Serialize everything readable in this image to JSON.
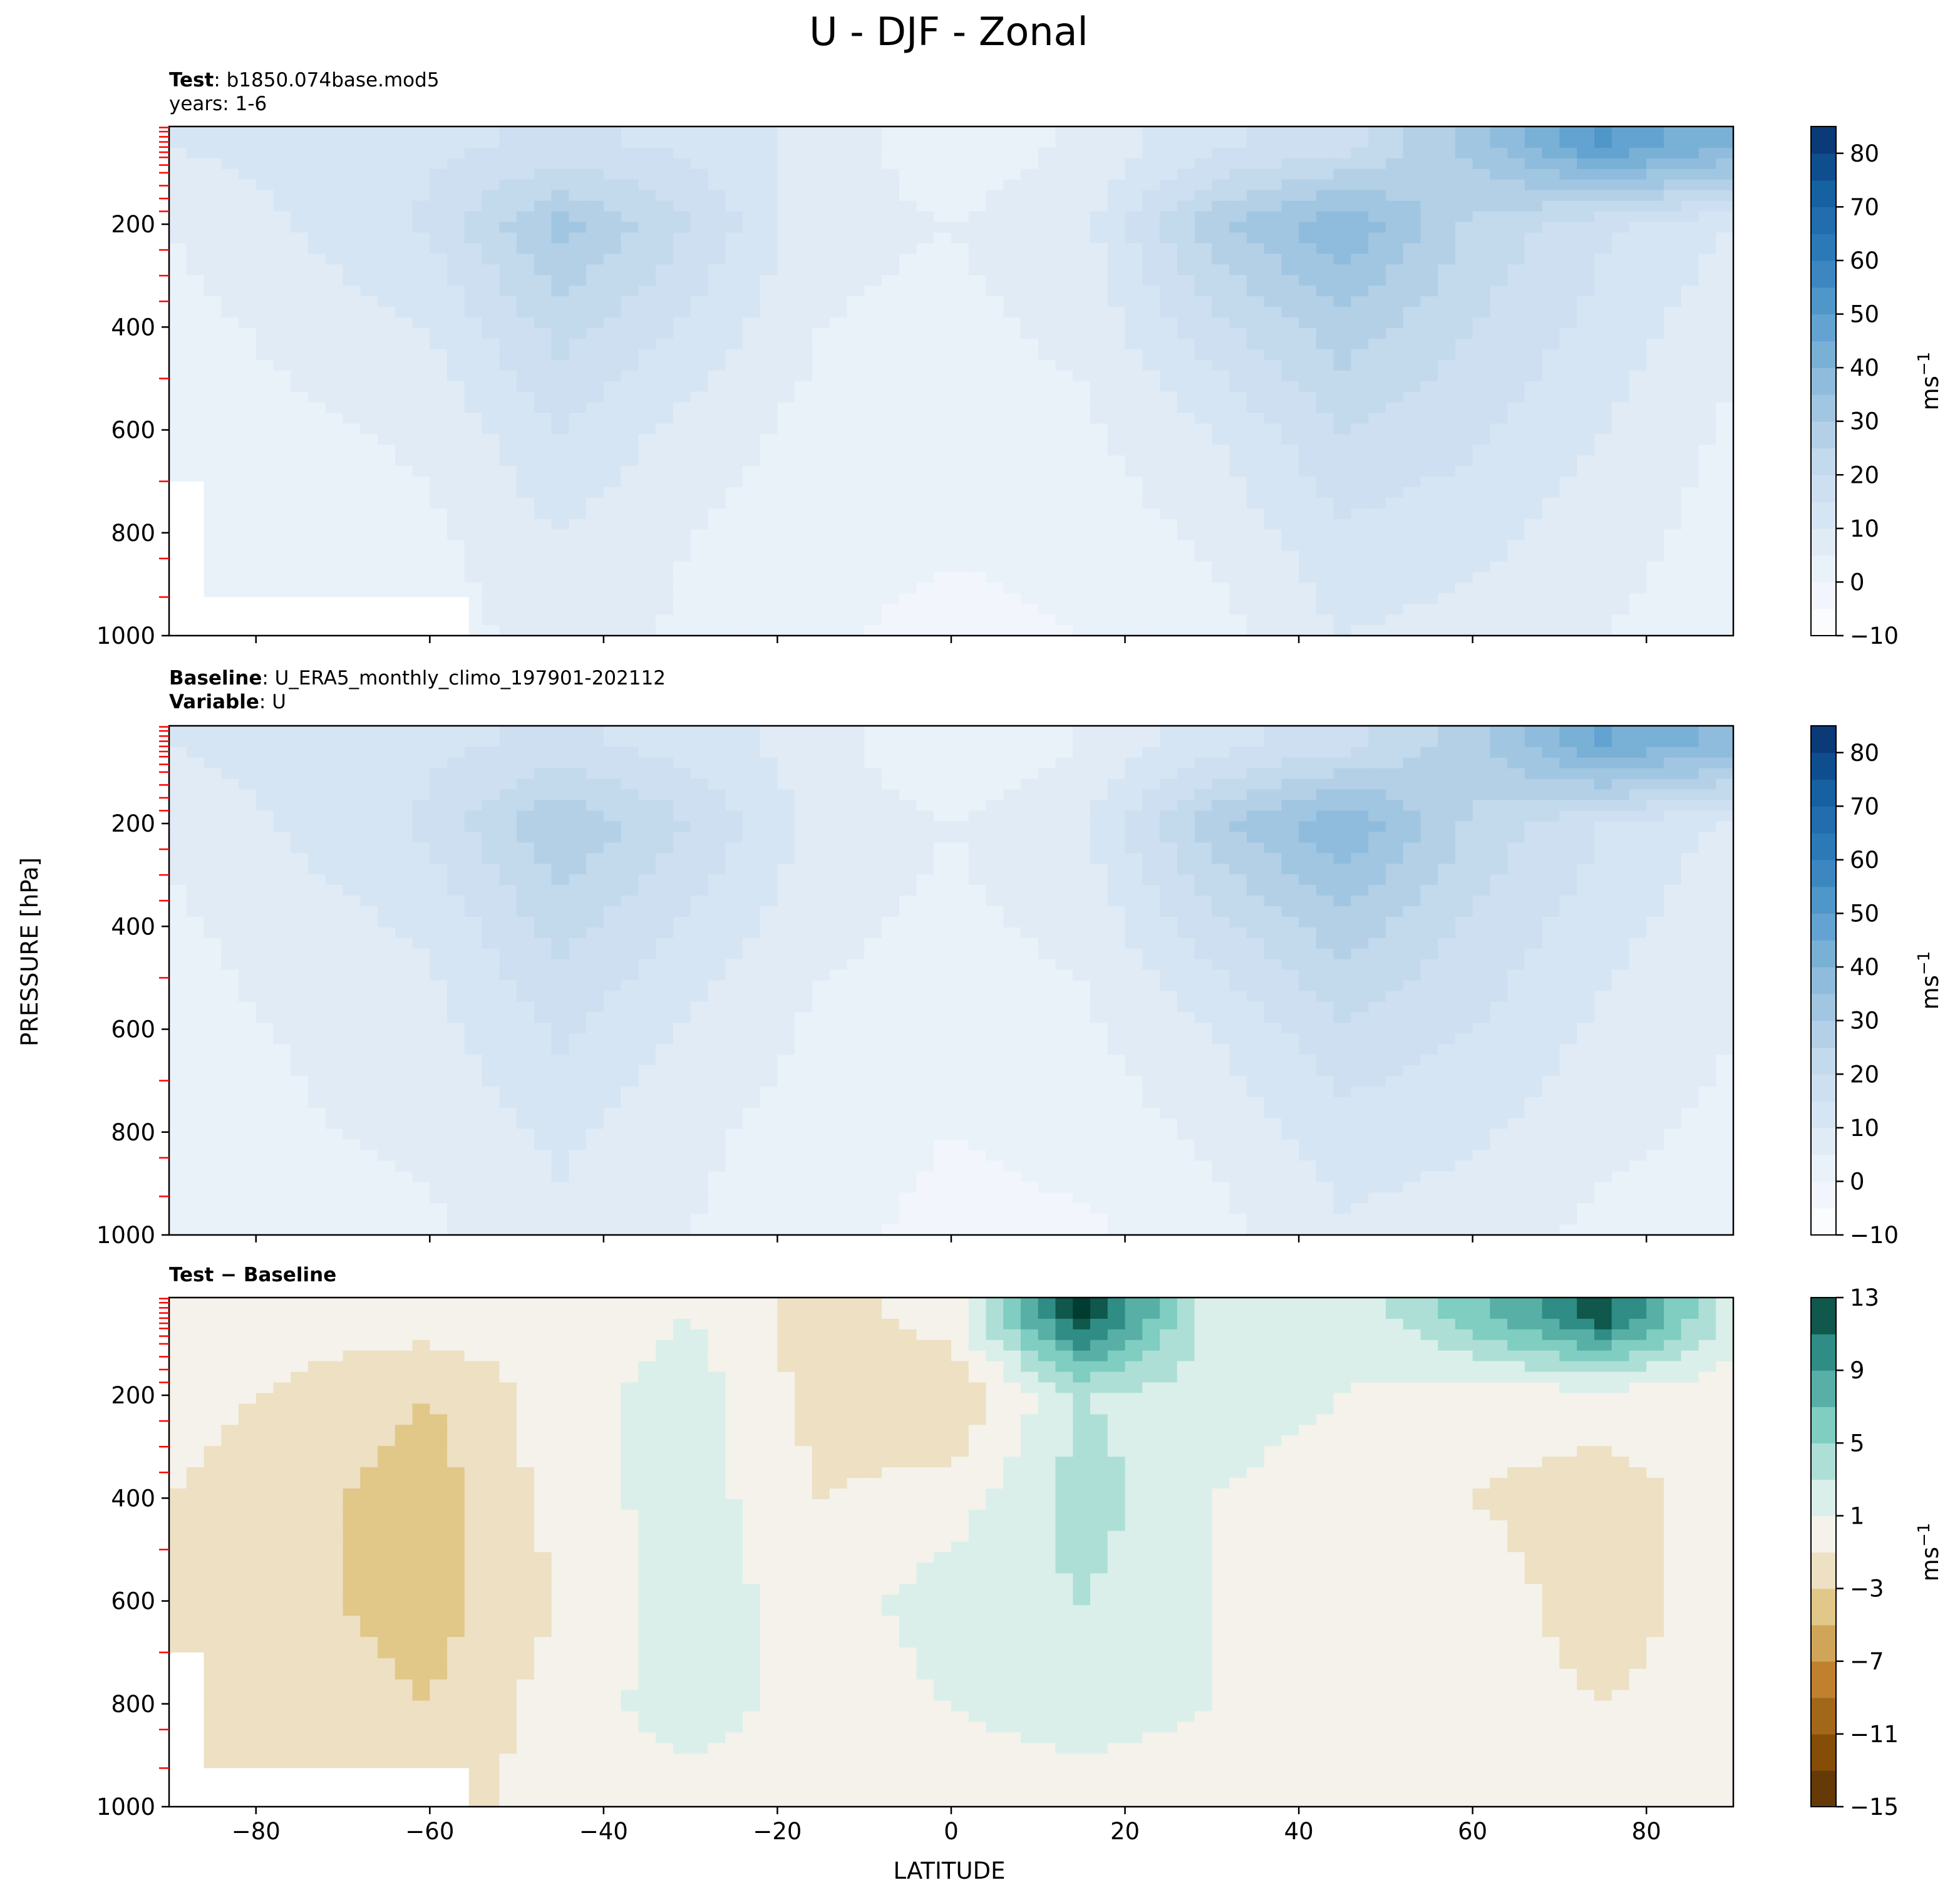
{
  "figure": {
    "title": "U - DJF - Zonal",
    "ylabel": "PRESSURE [hPa]",
    "xlabel": "LATITUDE"
  },
  "panels": [
    {
      "id": "test",
      "header": [
        {
          "bold": "Test",
          "text": ": b1850.074base.mod5"
        },
        {
          "bold": "",
          "text": "years: 1-6"
        }
      ],
      "colorbar": {
        "unit": "ms",
        "unit_sup": "−1",
        "ticks": [
          "80",
          "70",
          "60",
          "50",
          "40",
          "30",
          "20",
          "10",
          "0",
          "−10"
        ]
      }
    },
    {
      "id": "baseline",
      "header": [
        {
          "bold": "Baseline",
          "text": ": U_ERA5_monthly_climo_197901-202112"
        },
        {
          "bold": "Variable",
          "text": ": U"
        }
      ],
      "colorbar": {
        "unit": "ms",
        "unit_sup": "−1",
        "ticks": [
          "80",
          "70",
          "60",
          "50",
          "40",
          "30",
          "20",
          "10",
          "0",
          "−10"
        ]
      }
    },
    {
      "id": "diff",
      "header": [
        {
          "bold": "Test − Baseline",
          "text": ""
        }
      ],
      "colorbar": {
        "unit": "ms",
        "unit_sup": "−1",
        "ticks": [
          "13",
          "9",
          "5",
          "1",
          "−3",
          "−7",
          "−11",
          "−15"
        ]
      }
    }
  ],
  "chart_data": [
    {
      "type": "heatmap",
      "name": "Test",
      "x": [
        -90,
        -60,
        -45,
        -30,
        -15,
        0,
        15,
        30,
        45,
        60,
        75,
        90
      ],
      "y": [
        1000,
        800,
        600,
        400,
        200,
        50
      ],
      "z_units": "m/s",
      "z": [
        [
          -1,
          2,
          8,
          4,
          1,
          -2,
          0,
          3,
          10,
          8,
          5,
          2
        ],
        [
          1,
          4,
          10,
          5,
          2,
          1,
          2,
          6,
          14,
          12,
          7,
          3
        ],
        [
          2,
          6,
          15,
          8,
          3,
          3,
          4,
          10,
          20,
          16,
          10,
          4
        ],
        [
          3,
          10,
          22,
          14,
          5,
          4,
          6,
          18,
          28,
          20,
          13,
          6
        ],
        [
          5,
          16,
          32,
          20,
          6,
          5,
          8,
          28,
          40,
          24,
          16,
          10
        ],
        [
          10,
          14,
          16,
          14,
          8,
          2,
          6,
          14,
          18,
          32,
          50,
          40
        ]
      ],
      "ylim": [
        1000,
        10
      ],
      "xlim": [
        -90,
        90
      ],
      "xticks": [
        -80,
        -60,
        -40,
        -20,
        0,
        20,
        40,
        60,
        80
      ],
      "yticks": [
        200,
        400,
        600,
        800,
        1000
      ],
      "colorbar_range": [
        -10,
        85
      ]
    },
    {
      "type": "heatmap",
      "name": "Baseline",
      "x": [
        -90,
        -60,
        -45,
        -30,
        -15,
        0,
        15,
        30,
        45,
        60,
        75,
        90
      ],
      "y": [
        1000,
        800,
        600,
        400,
        200,
        50
      ],
      "z_units": "m/s",
      "z": [
        [
          2,
          4,
          9,
          5,
          2,
          -2,
          -1,
          3,
          9,
          7,
          4,
          3
        ],
        [
          3,
          6,
          11,
          6,
          3,
          0,
          2,
          6,
          13,
          11,
          6,
          4
        ],
        [
          3,
          8,
          16,
          9,
          4,
          3,
          4,
          10,
          19,
          15,
          9,
          5
        ],
        [
          4,
          11,
          22,
          14,
          6,
          4,
          6,
          18,
          28,
          19,
          12,
          6
        ],
        [
          6,
          16,
          30,
          20,
          8,
          5,
          9,
          28,
          40,
          24,
          15,
          9
        ],
        [
          10,
          14,
          16,
          13,
          7,
          0,
          5,
          13,
          18,
          28,
          45,
          38
        ]
      ],
      "ylim": [
        1000,
        10
      ],
      "xlim": [
        -90,
        90
      ],
      "xticks": [
        -80,
        -60,
        -40,
        -20,
        0,
        20,
        40,
        60,
        80
      ],
      "yticks": [
        200,
        400,
        600,
        800,
        1000
      ],
      "colorbar_range": [
        -10,
        85
      ]
    },
    {
      "type": "heatmap",
      "name": "Test − Baseline",
      "x": [
        -90,
        -60,
        -45,
        -30,
        -15,
        0,
        15,
        30,
        45,
        60,
        75,
        90
      ],
      "y": [
        1000,
        800,
        600,
        400,
        200,
        50
      ],
      "z_units": "m/s",
      "z": [
        [
          -1,
          -2,
          0,
          0,
          0,
          0,
          0,
          0,
          1,
          0,
          -1,
          0
        ],
        [
          -1,
          -3,
          0,
          2,
          0,
          1,
          2,
          1,
          0,
          0,
          -1,
          0
        ],
        [
          -1,
          -4,
          -1,
          2,
          0,
          2,
          3,
          1,
          0,
          0,
          -2,
          0
        ],
        [
          -1,
          -4,
          0,
          2,
          -1,
          0,
          4,
          1,
          0,
          -1,
          -2,
          0
        ],
        [
          0,
          -3,
          0,
          2,
          -2,
          -3,
          3,
          2,
          1,
          0,
          0,
          0
        ],
        [
          0,
          0,
          0,
          1,
          -2,
          0,
          13,
          2,
          1,
          6,
          12,
          2
        ]
      ],
      "ylim": [
        1000,
        10
      ],
      "xlim": [
        -90,
        90
      ],
      "xticks": [
        -80,
        -60,
        -40,
        -20,
        0,
        20,
        40,
        60,
        80
      ],
      "yticks": [
        200,
        400,
        600,
        800,
        1000
      ],
      "colorbar_range": [
        -15,
        13
      ]
    }
  ]
}
